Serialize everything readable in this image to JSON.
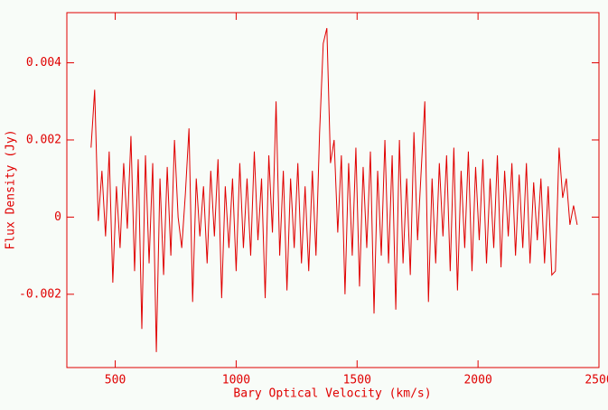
{
  "chart_data": {
    "type": "line",
    "xlabel": "Bary Optical Velocity (km/s)",
    "ylabel": "Flux Density (Jy)",
    "color": "#e00000",
    "xlim": [
      300,
      2500
    ],
    "xticks": [
      500,
      1000,
      1500,
      2000,
      2500
    ],
    "ylim": [
      -0.0039,
      0.0053
    ],
    "yticks": [
      -0.002,
      0,
      0.002,
      0.004
    ],
    "x": [
      400,
      415,
      430,
      445,
      460,
      475,
      490,
      505,
      520,
      535,
      550,
      565,
      580,
      595,
      610,
      625,
      640,
      655,
      670,
      685,
      700,
      715,
      730,
      745,
      760,
      775,
      790,
      805,
      820,
      835,
      850,
      865,
      880,
      895,
      910,
      925,
      940,
      955,
      970,
      985,
      1000,
      1015,
      1030,
      1045,
      1060,
      1075,
      1090,
      1105,
      1120,
      1135,
      1150,
      1165,
      1180,
      1195,
      1210,
      1225,
      1240,
      1255,
      1270,
      1285,
      1300,
      1315,
      1330,
      1345,
      1360,
      1375,
      1390,
      1405,
      1420,
      1435,
      1450,
      1465,
      1480,
      1495,
      1510,
      1525,
      1540,
      1555,
      1570,
      1585,
      1600,
      1615,
      1630,
      1645,
      1660,
      1675,
      1690,
      1705,
      1720,
      1735,
      1750,
      1765,
      1780,
      1795,
      1810,
      1825,
      1840,
      1855,
      1870,
      1885,
      1900,
      1915,
      1930,
      1945,
      1960,
      1975,
      1990,
      2005,
      2020,
      2035,
      2050,
      2065,
      2080,
      2095,
      2110,
      2125,
      2140,
      2155,
      2170,
      2185,
      2200,
      2215,
      2230,
      2245,
      2260,
      2275,
      2290,
      2305,
      2320,
      2335,
      2350,
      2365,
      2380,
      2395,
      2410
    ],
    "values": [
      0.0018,
      0.0033,
      -0.0001,
      0.0012,
      -0.0005,
      0.0017,
      -0.0017,
      0.0008,
      -0.0008,
      0.0014,
      -0.0003,
      0.0021,
      -0.0014,
      0.0015,
      -0.0029,
      0.0016,
      -0.0012,
      0.0014,
      -0.0035,
      0.001,
      -0.0015,
      0.0013,
      -0.001,
      0.002,
      0,
      -0.0008,
      0.0006,
      0.0023,
      -0.0022,
      0.001,
      -0.0005,
      0.0008,
      -0.0012,
      0.0012,
      -0.0005,
      0.0015,
      -0.0021,
      0.0008,
      -0.0008,
      0.001,
      -0.0014,
      0.0014,
      -0.0008,
      0.001,
      -0.001,
      0.0017,
      -0.0006,
      0.001,
      -0.0021,
      0.0016,
      -0.0004,
      0.003,
      -0.001,
      0.0012,
      -0.0019,
      0.001,
      -0.0008,
      0.0014,
      -0.0012,
      0.0008,
      -0.0014,
      0.0012,
      -0.001,
      0.0022,
      0.0045,
      0.0049,
      0.0014,
      0.002,
      -0.0004,
      0.0016,
      -0.002,
      0.0014,
      -0.001,
      0.0018,
      -0.0018,
      0.0013,
      -0.0008,
      0.0017,
      -0.0025,
      0.0012,
      -0.001,
      0.002,
      -0.0012,
      0.0016,
      -0.0024,
      0.002,
      -0.0012,
      0.001,
      -0.0015,
      0.0022,
      -0.0006,
      0.0012,
      0.003,
      -0.0022,
      0.001,
      -0.0012,
      0.0014,
      -0.0005,
      0.0016,
      -0.0014,
      0.0018,
      -0.0019,
      0.0012,
      -0.0008,
      0.0017,
      -0.0014,
      0.0013,
      -0.0006,
      0.0015,
      -0.0012,
      0.001,
      -0.0008,
      0.0016,
      -0.0013,
      0.0012,
      -0.0005,
      0.0014,
      -0.001,
      0.0011,
      -0.0008,
      0.0014,
      -0.0012,
      0.0009,
      -0.0006,
      0.001,
      -0.0012,
      0.0008,
      -0.0015,
      -0.0014,
      0.0018,
      0.0005,
      0.001,
      -0.0002,
      0.0003,
      -0.0002
    ]
  }
}
